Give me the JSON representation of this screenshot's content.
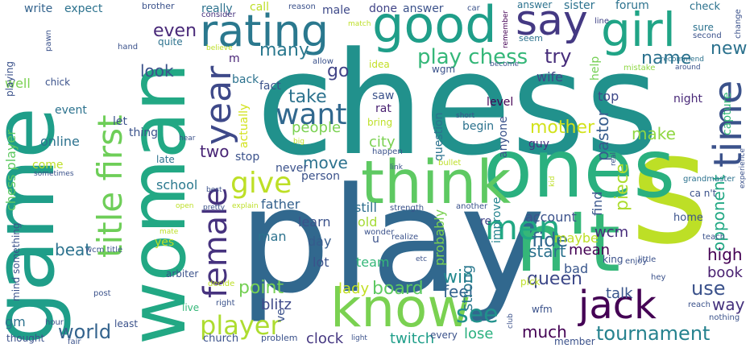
{
  "words": [
    {
      "text": "chess",
      "color": "#21918c"
    },
    {
      "text": "game",
      "color": "#1f9e89"
    },
    {
      "text": "play",
      "color": "#31688e"
    },
    {
      "text": "woman",
      "color": "#22a884"
    },
    {
      "text": "n't",
      "color": "#35b779"
    },
    {
      "text": "s",
      "color": "#bddf26"
    },
    {
      "text": "ones",
      "color": "#2ab07f"
    },
    {
      "text": "think",
      "color": "#5ec962"
    },
    {
      "text": "know",
      "color": "#7ad151"
    },
    {
      "text": "good",
      "color": "#1f9e89"
    },
    {
      "text": "girl",
      "color": "#20a486"
    },
    {
      "text": "rating",
      "color": "#2a788e"
    },
    {
      "text": "say",
      "color": "#443983"
    },
    {
      "text": "time",
      "color": "#3b528b"
    },
    {
      "text": "jack",
      "color": "#440154"
    },
    {
      "text": "men",
      "color": "#22a884"
    },
    {
      "text": "year",
      "color": "#3e4989"
    },
    {
      "text": "title first",
      "color": "#6ece58"
    },
    {
      "text": "female",
      "color": "#46327e"
    },
    {
      "text": "give",
      "color": "#bddf26"
    },
    {
      "text": "want",
      "color": "#31688e"
    },
    {
      "text": "player",
      "color": "#addc30"
    },
    {
      "text": "see",
      "color": "#21918c"
    },
    {
      "text": "play chess",
      "color": "#35b779"
    },
    {
      "text": "try",
      "color": "#472d7b"
    },
    {
      "text": "fide",
      "color": "#31688e"
    },
    {
      "text": "use",
      "color": "#3b528b"
    },
    {
      "text": "tournament",
      "color": "#26828e"
    },
    {
      "text": "world",
      "color": "#33638d"
    },
    {
      "text": "queen",
      "color": "#3e4989"
    },
    {
      "text": "opponent",
      "color": "#22a884"
    },
    {
      "text": "mother",
      "color": "#d2e21b"
    },
    {
      "text": "point",
      "color": "#75d054"
    },
    {
      "text": "win",
      "color": "#23898e"
    },
    {
      "text": "board",
      "color": "#5ec962"
    },
    {
      "text": "take",
      "color": "#2c728e"
    },
    {
      "text": "go",
      "color": "#414487"
    },
    {
      "text": "many",
      "color": "#2a788e"
    },
    {
      "text": "even",
      "color": "#482878"
    },
    {
      "text": "name",
      "color": "#2c728e"
    },
    {
      "text": "new",
      "color": "#2c728e"
    },
    {
      "text": "piece",
      "color": "#addc30"
    },
    {
      "text": "pastor",
      "color": "#365c8d"
    },
    {
      "text": "way",
      "color": "#46327e"
    },
    {
      "text": "high",
      "color": "#440154"
    },
    {
      "text": "book",
      "color": "#481f70"
    },
    {
      "text": "much",
      "color": "#440154"
    },
    {
      "text": "beat",
      "color": "#2c728e"
    },
    {
      "text": "two",
      "color": "#482475"
    },
    {
      "text": "look",
      "color": "#3b528b"
    },
    {
      "text": "blitz",
      "color": "#3e4989"
    },
    {
      "text": "make",
      "color": "#90d743"
    },
    {
      "text": "people",
      "color": "#7ad151"
    },
    {
      "text": "city",
      "color": "#7ad151"
    },
    {
      "text": "move",
      "color": "#2c728e"
    },
    {
      "text": "lady",
      "color": "#c2df23"
    },
    {
      "text": "start",
      "color": "#2c728e"
    },
    {
      "text": "mean",
      "color": "#440154"
    },
    {
      "text": "feel",
      "color": "#33638d"
    },
    {
      "text": "wcm",
      "color": "#472d7b"
    },
    {
      "text": "school",
      "color": "#2a788e"
    },
    {
      "text": "father",
      "color": "#34618d"
    },
    {
      "text": "strong",
      "color": "#2a788e"
    },
    {
      "text": "twitch",
      "color": "#1f9e89"
    },
    {
      "text": "clock",
      "color": "#453781"
    },
    {
      "text": "lose",
      "color": "#2ab07f"
    },
    {
      "text": "talk",
      "color": "#39558c"
    },
    {
      "text": "account",
      "color": "#3b528b"
    },
    {
      "text": "maybe",
      "color": "#bddf26"
    },
    {
      "text": "bad",
      "color": "#39568c"
    },
    {
      "text": "find",
      "color": "#39568c"
    },
    {
      "text": "learn",
      "color": "#3b528b"
    },
    {
      "text": "old",
      "color": "#a5db36"
    },
    {
      "text": "day",
      "color": "#365c8d"
    },
    {
      "text": "lot",
      "color": "#3b528b"
    },
    {
      "text": "team",
      "color": "#35b779"
    },
    {
      "text": "man",
      "color": "#2c728e"
    },
    {
      "text": "still",
      "color": "#2e6e8e"
    },
    {
      "text": "u",
      "color": "#3b528b"
    },
    {
      "text": "re",
      "color": "#414487"
    },
    {
      "text": "probably",
      "color": "#7ad151"
    },
    {
      "text": "improve",
      "color": "#25848e"
    },
    {
      "text": "question",
      "color": "#2c728e"
    },
    {
      "text": "begin",
      "color": "#2c728e"
    },
    {
      "text": "guy",
      "color": "#46327e"
    },
    {
      "text": "wife",
      "color": "#404688"
    },
    {
      "text": "help",
      "color": "#75d054"
    },
    {
      "text": "top",
      "color": "#3e4989"
    },
    {
      "text": "night",
      "color": "#482878"
    },
    {
      "text": "capture",
      "color": "#35b779"
    },
    {
      "text": "level",
      "color": "#440154"
    },
    {
      "text": "anyone",
      "color": "#3b528b"
    },
    {
      "text": "rat",
      "color": "#481f70"
    },
    {
      "text": "saw",
      "color": "#3b528b"
    },
    {
      "text": "wgm",
      "color": "#3b528b"
    },
    {
      "text": "idea",
      "color": "#c2df23"
    },
    {
      "text": "actually",
      "color": "#d2e21b"
    },
    {
      "text": "fact",
      "color": "#3b528b"
    },
    {
      "text": "back",
      "color": "#2c728e"
    },
    {
      "text": "m",
      "color": "#482475"
    },
    {
      "text": "male",
      "color": "#3e4989"
    },
    {
      "text": "really",
      "color": "#2c728e"
    },
    {
      "text": "call",
      "color": "#bddf26"
    },
    {
      "text": "done",
      "color": "#414487"
    },
    {
      "text": "answer",
      "color": "#3b528b"
    },
    {
      "text": "expect",
      "color": "#2c728e"
    },
    {
      "text": "write",
      "color": "#33638d"
    },
    {
      "text": "brother",
      "color": "#3b528b"
    },
    {
      "text": "consider",
      "color": "#46327e"
    },
    {
      "text": "reason",
      "color": "#3b528b"
    },
    {
      "text": "car",
      "color": "#3b528b"
    },
    {
      "text": "remember",
      "color": "#440154"
    },
    {
      "text": "answer",
      "color": "#2c728e"
    },
    {
      "text": "sister",
      "color": "#2c728e"
    },
    {
      "text": "forum",
      "color": "#2c728e"
    },
    {
      "text": "check",
      "color": "#2c728e"
    },
    {
      "text": "change",
      "color": "#3b528b"
    },
    {
      "text": "line",
      "color": "#414487"
    },
    {
      "text": "sure",
      "color": "#2c728e"
    },
    {
      "text": "second",
      "color": "#3b528b"
    },
    {
      "text": "seem",
      "color": "#2c728e"
    },
    {
      "text": "become",
      "color": "#3b528b"
    },
    {
      "text": "mistake",
      "color": "#8fd744"
    },
    {
      "text": "recommend",
      "color": "#2c728e"
    },
    {
      "text": "around",
      "color": "#3b528b"
    },
    {
      "text": "quite",
      "color": "#2c728e"
    },
    {
      "text": "believe",
      "color": "#bddf26"
    },
    {
      "text": "allow",
      "color": "#3b528b"
    },
    {
      "text": "match",
      "color": "#bddf26"
    },
    {
      "text": "hand",
      "color": "#3b528b"
    },
    {
      "text": "pawn",
      "color": "#3b528b"
    },
    {
      "text": "chick",
      "color": "#3b528b"
    },
    {
      "text": "well",
      "color": "#7ad151"
    },
    {
      "text": "playing",
      "color": "#3b528b"
    },
    {
      "text": "chess player",
      "color": "#5ec962"
    },
    {
      "text": "event",
      "color": "#2c728e"
    },
    {
      "text": "let",
      "color": "#3b528b"
    },
    {
      "text": "thing",
      "color": "#3b528b"
    },
    {
      "text": "online",
      "color": "#2c728e"
    },
    {
      "text": "come",
      "color": "#bddf26"
    },
    {
      "text": "sometimes",
      "color": "#3b528b"
    },
    {
      "text": "late",
      "color": "#2c728e"
    },
    {
      "text": "hear",
      "color": "#3b528b"
    },
    {
      "text": "best",
      "color": "#3b528b"
    },
    {
      "text": "open",
      "color": "#bddf26"
    },
    {
      "text": "pretty",
      "color": "#3b528b"
    },
    {
      "text": "explain",
      "color": "#bddf26"
    },
    {
      "text": "yes",
      "color": "#bddf26"
    },
    {
      "text": "something",
      "color": "#3b528b"
    },
    {
      "text": "mind",
      "color": "#3b528b"
    },
    {
      "text": "mate",
      "color": "#bddf26"
    },
    {
      "text": "wcm title",
      "color": "#3b528b"
    },
    {
      "text": "arbiter",
      "color": "#3b528b"
    },
    {
      "text": "decide",
      "color": "#bddf26"
    },
    {
      "text": "post",
      "color": "#3b528b"
    },
    {
      "text": "live",
      "color": "#35b779"
    },
    {
      "text": "right",
      "color": "#3b528b"
    },
    {
      "text": "gm",
      "color": "#2c728e"
    },
    {
      "text": "hour",
      "color": "#3b528b"
    },
    {
      "text": "least",
      "color": "#3b528b"
    },
    {
      "text": "thought",
      "color": "#3b528b"
    },
    {
      "text": "fair",
      "color": "#3b528b"
    },
    {
      "text": "church",
      "color": "#3b528b"
    },
    {
      "text": "problem",
      "color": "#3b528b"
    },
    {
      "text": "light",
      "color": "#3b528b"
    },
    {
      "text": "every",
      "color": "#3b528b"
    },
    {
      "text": "ve",
      "color": "#3b528b"
    },
    {
      "text": "stop",
      "color": "#3b528b"
    },
    {
      "text": "never",
      "color": "#3b528b"
    },
    {
      "text": "person",
      "color": "#3b528b"
    },
    {
      "text": "bring",
      "color": "#bddf26"
    },
    {
      "text": "big",
      "color": "#bddf26"
    },
    {
      "text": "happen",
      "color": "#3b528b"
    },
    {
      "text": "short",
      "color": "#3b528b"
    },
    {
      "text": "link",
      "color": "#3b528b"
    },
    {
      "text": "bullet",
      "color": "#bddf26"
    },
    {
      "text": "another",
      "color": "#3b528b"
    },
    {
      "text": "strength",
      "color": "#3b528b"
    },
    {
      "text": "wonder",
      "color": "#3b528b"
    },
    {
      "text": "realize",
      "color": "#3b528b"
    },
    {
      "text": "etc",
      "color": "#3b528b"
    },
    {
      "text": "club",
      "color": "#3b528b"
    },
    {
      "text": "pick",
      "color": "#bddf26"
    },
    {
      "text": "wfm",
      "color": "#3b528b"
    },
    {
      "text": "member",
      "color": "#3b528b"
    },
    {
      "text": "kid",
      "color": "#bddf26"
    },
    {
      "text": "real",
      "color": "#3b528b"
    },
    {
      "text": "grandmaster",
      "color": "#2c728e"
    },
    {
      "text": "experience",
      "color": "#3b528b"
    },
    {
      "text": "ca n't",
      "color": "#3b528b"
    },
    {
      "text": "home",
      "color": "#3b528b"
    },
    {
      "text": "king",
      "color": "#3b528b"
    },
    {
      "text": "little",
      "color": "#3b528b"
    },
    {
      "text": "enjoy",
      "color": "#3b528b"
    },
    {
      "text": "teach",
      "color": "#3b528b"
    },
    {
      "text": "hey",
      "color": "#3b528b"
    },
    {
      "text": "reach",
      "color": "#3b528b"
    },
    {
      "text": "nothing",
      "color": "#3b528b"
    }
  ]
}
